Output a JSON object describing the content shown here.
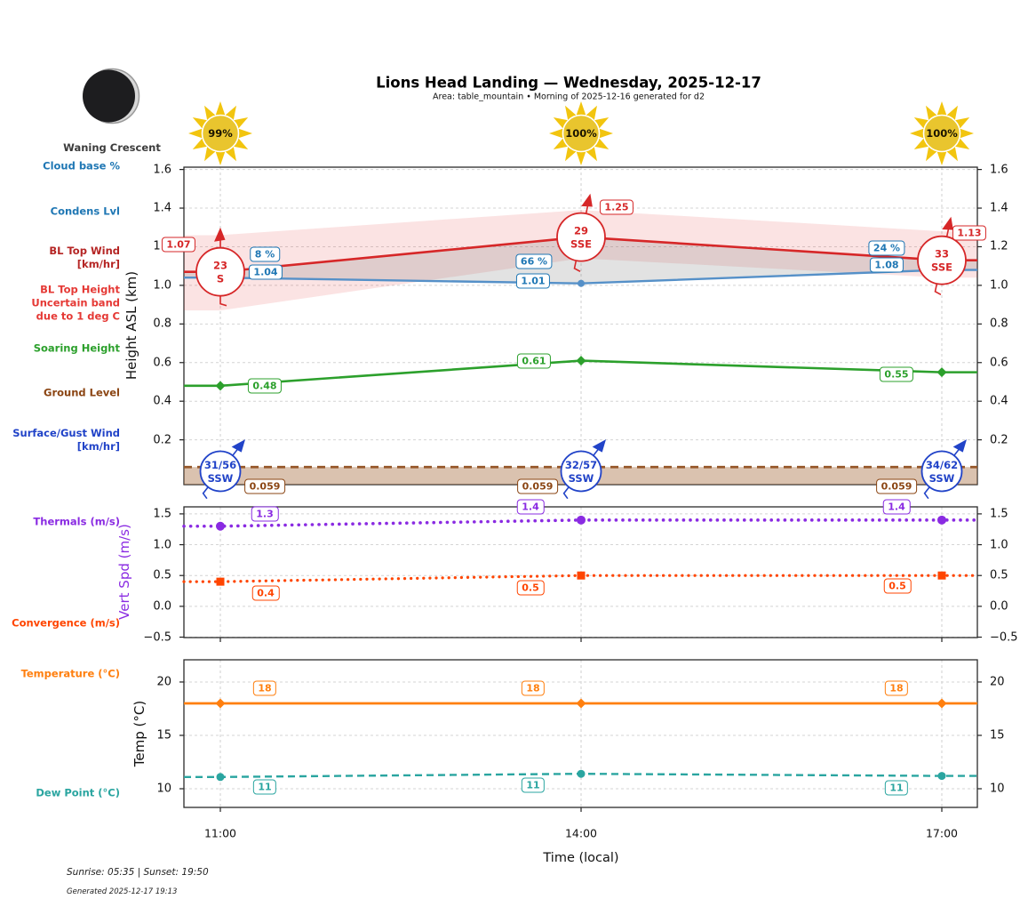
{
  "header": {
    "moon_phase": "Waning Crescent",
    "title": "Lions Head Landing — Wednesday, 2025-12-17",
    "subtitle": "Area: table_mountain • Morning of 2025-12-16 generated for d2",
    "sun_coverage": [
      "99%",
      "100%",
      "100%"
    ]
  },
  "axes": {
    "x_ticks": [
      "11:00",
      "14:00",
      "17:00"
    ],
    "x_label": "Time (local)"
  },
  "row_labels": [
    {
      "lines": [
        "Cloud base %"
      ],
      "color": "#1f77b4"
    },
    {
      "lines": [
        "Condens Lvl"
      ],
      "color": "#1f77b4"
    },
    {
      "lines": [
        "BL Top Wind",
        "[km/hr]"
      ],
      "color": "#b52524"
    },
    {
      "lines": [
        "BL Top Height",
        "Uncertain band",
        "due to 1 deg C"
      ],
      "color": "#e53935"
    },
    {
      "lines": [
        "Soaring Height"
      ],
      "color": "#2ca02c"
    },
    {
      "lines": [
        "Ground Level"
      ],
      "color": "#8b4513"
    },
    {
      "lines": [
        "Surface/Gust Wind",
        "[km/hr]"
      ],
      "color": "#2143c8"
    },
    {
      "lines": [
        "Thermals (m/s)"
      ],
      "color": "#8a2be2"
    },
    {
      "lines": [
        "Convergence (m/s)"
      ],
      "color": "#ff4500"
    },
    {
      "lines": [
        "Temperature (°C)"
      ],
      "color": "#ff7f0e"
    },
    {
      "lines": [
        "Dew Point (°C)"
      ],
      "color": "#2aa5a0"
    }
  ],
  "chart_data": [
    {
      "name": "heights",
      "type": "line",
      "x": [
        "11:00",
        "14:00",
        "17:00"
      ],
      "ylabel": "Height ASL (km)",
      "ylim": [
        -0.03,
        1.61
      ],
      "yticks": [
        "1.6",
        "1.4",
        "1.2",
        "1.0",
        "0.8",
        "0.6",
        "0.4",
        "0.2"
      ],
      "grid": true,
      "series": [
        {
          "id": "bl_top_height",
          "name": "BL Top Height",
          "color": "#d62728",
          "values": [
            1.07,
            1.25,
            1.13
          ],
          "labels": [
            "1.07",
            "1.25",
            "1.13"
          ],
          "band_upper": [
            1.26,
            1.39,
            1.28
          ],
          "band_lower": [
            0.87,
            1.14,
            1.04
          ]
        },
        {
          "id": "condens_lvl",
          "name": "Condens Lvl",
          "color": "#1f77b4",
          "values": [
            1.04,
            1.01,
            1.08
          ],
          "labels": [
            "1.04",
            "1.01",
            "1.08"
          ]
        },
        {
          "id": "cloud_base_pct",
          "name": "Cloud base %",
          "color": "#1f77b4",
          "labels": [
            "8 %",
            "66 %",
            "24 %"
          ]
        },
        {
          "id": "soaring_height",
          "name": "Soaring Height",
          "color": "#2ca02c",
          "values": [
            0.48,
            0.61,
            0.55
          ],
          "labels": [
            "0.48",
            "0.61",
            "0.55"
          ]
        },
        {
          "id": "ground_level",
          "name": "Ground Level",
          "color": "#8b4513",
          "values": [
            0.059,
            0.059,
            0.059
          ],
          "labels": [
            "0.059",
            "0.059",
            "0.059"
          ]
        },
        {
          "id": "bl_top_wind",
          "name": "BL Top Wind [km/hr]",
          "color": "#d62728",
          "points": [
            {
              "speed": "23",
              "dir": "S"
            },
            {
              "speed": "29",
              "dir": "SSE"
            },
            {
              "speed": "33",
              "dir": "SSE"
            }
          ]
        },
        {
          "id": "surface_gust_wind",
          "name": "Surface/Gust Wind [km/hr]",
          "color": "#2143c8",
          "points": [
            {
              "speed": "31/56",
              "dir": "SSW"
            },
            {
              "speed": "32/57",
              "dir": "SSW"
            },
            {
              "speed": "34/62",
              "dir": "SSW"
            }
          ]
        }
      ]
    },
    {
      "name": "vertical_speed",
      "type": "line",
      "x": [
        "11:00",
        "14:00",
        "17:00"
      ],
      "ylabel": "Vert Spd (m/s)",
      "ylim": [
        -0.5,
        1.6
      ],
      "yticks": [
        "1.5",
        "1.0",
        "0.5",
        "0.0",
        "−0.5"
      ],
      "grid": true,
      "series": [
        {
          "id": "thermals",
          "name": "Thermals (m/s)",
          "color": "#8a2be2",
          "values": [
            1.3,
            1.4,
            1.4
          ],
          "labels": [
            "1.3",
            "1.4",
            "1.4"
          ]
        },
        {
          "id": "convergence",
          "name": "Convergence (m/s)",
          "color": "#ff4500",
          "values": [
            0.4,
            0.5,
            0.5
          ],
          "labels": [
            "0.4",
            "0.5",
            "0.5"
          ]
        }
      ]
    },
    {
      "name": "temperature",
      "type": "line",
      "x": [
        "11:00",
        "14:00",
        "17:00"
      ],
      "ylabel": "Temp (°C)",
      "ylim": [
        8.3,
        22.1
      ],
      "yticks": [
        "20",
        "15",
        "10"
      ],
      "grid": true,
      "series": [
        {
          "id": "temperature",
          "name": "Temperature (°C)",
          "color": "#ff7f0e",
          "values": [
            18,
            18,
            18
          ],
          "labels": [
            "18",
            "18",
            "18"
          ]
        },
        {
          "id": "dew_point",
          "name": "Dew Point (°C)",
          "color": "#2aa5a0",
          "values": [
            11.1,
            11.4,
            11.2
          ],
          "labels": [
            "11",
            "11",
            "11"
          ]
        }
      ]
    }
  ],
  "footer": {
    "sun_times": "Sunrise: 05:35 | Sunset: 19:50",
    "generated": "Generated 2025-12-17 19:13"
  }
}
